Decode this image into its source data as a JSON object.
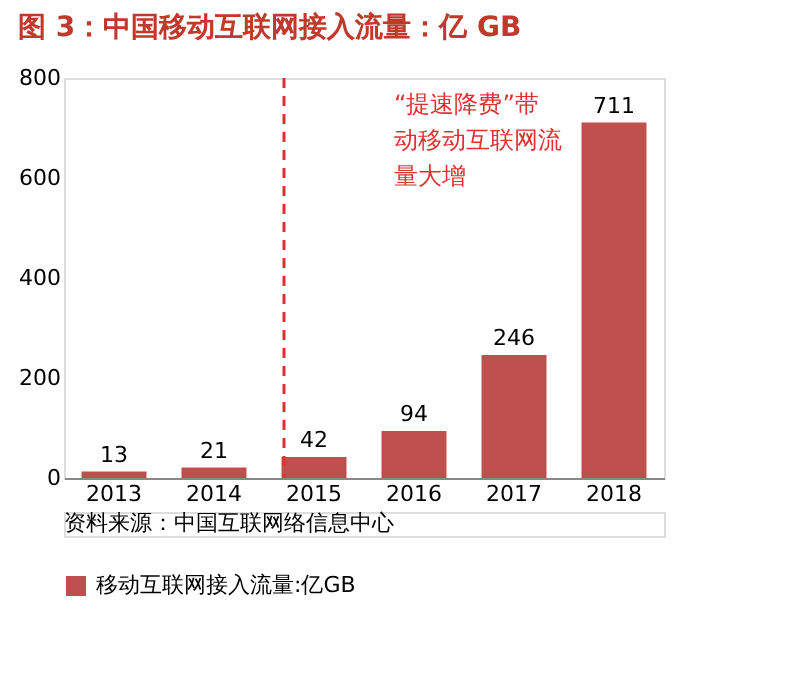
{
  "chart_data": {
    "type": "bar",
    "title": "图 3：中国移动互联网接入流量：亿 GB",
    "categories": [
      "2013",
      "2014",
      "2015",
      "2016",
      "2017",
      "2018"
    ],
    "series": [
      {
        "name": "移动互联网接入流量:亿GB",
        "color": "#c0504d",
        "values": [
          13,
          21,
          42,
          94,
          246,
          711
        ]
      }
    ],
    "ylim": [
      0,
      800
    ],
    "yticks": [
      0,
      200,
      400,
      600,
      800
    ],
    "grid": false,
    "legend": "bottom",
    "data_labels": true,
    "ref_lines": [
      {
        "axis": "x",
        "value": "2015",
        "color": "#e03030",
        "line_style": "dashed"
      }
    ],
    "annotations": [
      "“提速降费”带动移动互联网流量大增",
      "资料来源：中国互联网络信息中心"
    ]
  }
}
